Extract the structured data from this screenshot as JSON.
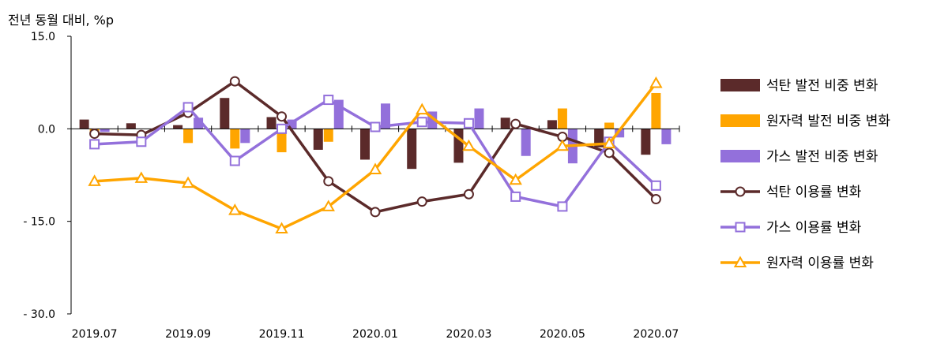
{
  "chart_data": {
    "type": "bar+line",
    "y_unit_label": "전년 동월 대비, %p",
    "ylim": [
      -30,
      15
    ],
    "yticks": [
      "15.0",
      "0.0",
      "- 15.0",
      "- 30.0"
    ],
    "ytick_values": [
      15,
      0,
      -15,
      -30
    ],
    "categories": [
      "2019.07",
      "2019.08",
      "2019.09",
      "2019.10",
      "2019.11",
      "2019.12",
      "2020.01",
      "2020.02",
      "2020.03",
      "2020.04",
      "2020.05",
      "2020.06",
      "2020.07"
    ],
    "x_tick_labels": [
      "2019.07",
      "",
      "2019.09",
      "",
      "2019.11",
      "",
      "2020.01",
      "",
      "2020.03",
      "",
      "2020.05",
      "",
      "2020.07"
    ],
    "bar_series": [
      {
        "name": "석탄 발전 비중 변화",
        "color": "#5b2a2a",
        "values": [
          1.5,
          0.9,
          0.6,
          5.0,
          1.9,
          -3.4,
          -5.0,
          -6.5,
          -5.5,
          1.8,
          1.4,
          -3.0,
          -4.2
        ]
      },
      {
        "name": "원자력 발전 비중 변화",
        "color": "#ffa500",
        "values": [
          -0.8,
          0.0,
          -2.3,
          -3.2,
          -3.8,
          -2.1,
          0.0,
          0.0,
          0.0,
          0.0,
          3.3,
          1.0,
          5.8
        ]
      },
      {
        "name": "가스 발전 비중 변화",
        "color": "#9370db",
        "values": [
          -0.5,
          0.0,
          1.8,
          -2.3,
          1.5,
          4.7,
          4.1,
          2.8,
          3.3,
          -4.4,
          -5.6,
          -1.4,
          -2.5
        ]
      }
    ],
    "line_series": [
      {
        "name": "석탄 이용률 변화",
        "color": "#5b2a2a",
        "marker": "circle",
        "values": [
          -0.8,
          -1.0,
          2.6,
          7.7,
          2.0,
          -8.5,
          -13.5,
          -11.8,
          -10.6,
          0.8,
          -1.3,
          -3.9,
          -11.4
        ]
      },
      {
        "name": "가스 이용률 변화",
        "color": "#9370db",
        "marker": "square",
        "values": [
          -2.5,
          -2.1,
          3.5,
          -5.2,
          0.0,
          4.7,
          0.3,
          1.1,
          0.9,
          -11.0,
          -12.6,
          -2.1,
          -9.2
        ]
      },
      {
        "name": "원자력 이용률 변화",
        "color": "#ffa500",
        "marker": "triangle",
        "values": [
          -8.5,
          -8.0,
          -8.8,
          -13.2,
          -16.2,
          -12.6,
          -6.6,
          3.1,
          -2.8,
          -8.3,
          -2.8,
          -2.4,
          7.4
        ]
      }
    ],
    "legend_position": "right",
    "grid": false
  }
}
